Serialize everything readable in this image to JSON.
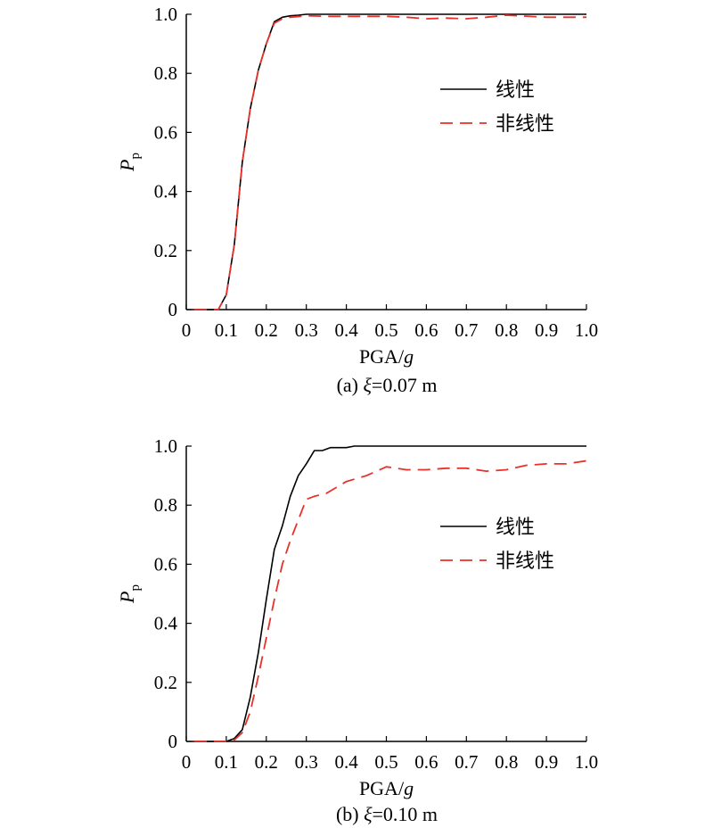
{
  "chart_data": [
    {
      "type": "line",
      "caption": {
        "prefix": "(a) ",
        "symbol": "ξ",
        "rest": "=0.07 m"
      },
      "xlabel": {
        "main": "PGA/",
        "italic": "g"
      },
      "ylabel": {
        "main": "P",
        "sub": "p"
      },
      "xlim": [
        0,
        1.0
      ],
      "ylim": [
        0,
        1.0
      ],
      "xticks": [
        "0",
        "0.1",
        "0.2",
        "0.3",
        "0.4",
        "0.5",
        "0.6",
        "0.7",
        "0.8",
        "0.9",
        "1.0"
      ],
      "yticks": [
        "0",
        "0.2",
        "0.4",
        "0.6",
        "0.8",
        "1.0"
      ],
      "legend_position": "right, upper-middle",
      "series": [
        {
          "name": "线性",
          "color": "#000000",
          "dash": "solid",
          "points": [
            [
              0.02,
              0
            ],
            [
              0.08,
              0
            ],
            [
              0.1,
              0.05
            ],
            [
              0.12,
              0.22
            ],
            [
              0.14,
              0.5
            ],
            [
              0.16,
              0.68
            ],
            [
              0.18,
              0.81
            ],
            [
              0.2,
              0.9
            ],
            [
              0.22,
              0.975
            ],
            [
              0.24,
              0.99
            ],
            [
              0.26,
              0.995
            ],
            [
              0.28,
              0.997
            ],
            [
              0.3,
              1.0
            ],
            [
              0.4,
              1.0
            ],
            [
              0.5,
              1.0
            ],
            [
              0.6,
              1.0
            ],
            [
              0.7,
              1.0
            ],
            [
              0.8,
              1.0
            ],
            [
              0.9,
              1.0
            ],
            [
              1.0,
              1.0
            ]
          ]
        },
        {
          "name": "非线性",
          "color": "#e8312a",
          "dash": "dashed",
          "points": [
            [
              0.02,
              0
            ],
            [
              0.08,
              0
            ],
            [
              0.1,
              0.05
            ],
            [
              0.12,
              0.22
            ],
            [
              0.14,
              0.5
            ],
            [
              0.16,
              0.68
            ],
            [
              0.18,
              0.81
            ],
            [
              0.2,
              0.9
            ],
            [
              0.22,
              0.97
            ],
            [
              0.24,
              0.985
            ],
            [
              0.26,
              0.99
            ],
            [
              0.3,
              0.995
            ],
            [
              0.35,
              0.993
            ],
            [
              0.4,
              0.993
            ],
            [
              0.5,
              0.993
            ],
            [
              0.55,
              0.99
            ],
            [
              0.6,
              0.985
            ],
            [
              0.65,
              0.987
            ],
            [
              0.7,
              0.985
            ],
            [
              0.75,
              0.99
            ],
            [
              0.8,
              0.997
            ],
            [
              0.9,
              0.99
            ],
            [
              1.0,
              0.99
            ]
          ]
        }
      ]
    },
    {
      "type": "line",
      "caption": {
        "prefix": "(b) ",
        "symbol": "ξ",
        "rest": "=0.10 m"
      },
      "xlabel": {
        "main": "PGA/",
        "italic": "g"
      },
      "ylabel": {
        "main": "P",
        "sub": "p"
      },
      "xlim": [
        0,
        1.0
      ],
      "ylim": [
        0,
        1.0
      ],
      "xticks": [
        "0",
        "0.1",
        "0.2",
        "0.3",
        "0.4",
        "0.5",
        "0.6",
        "0.7",
        "0.8",
        "0.9",
        "1.0"
      ],
      "yticks": [
        "0",
        "0.2",
        "0.4",
        "0.6",
        "0.8",
        "1.0"
      ],
      "legend_position": "right, upper-middle",
      "series": [
        {
          "name": "线性",
          "color": "#000000",
          "dash": "solid",
          "points": [
            [
              0.02,
              0
            ],
            [
              0.1,
              0
            ],
            [
              0.12,
              0.01
            ],
            [
              0.14,
              0.04
            ],
            [
              0.16,
              0.15
            ],
            [
              0.18,
              0.3
            ],
            [
              0.2,
              0.48
            ],
            [
              0.22,
              0.65
            ],
            [
              0.24,
              0.73
            ],
            [
              0.26,
              0.83
            ],
            [
              0.28,
              0.9
            ],
            [
              0.3,
              0.94
            ],
            [
              0.32,
              0.985
            ],
            [
              0.34,
              0.985
            ],
            [
              0.36,
              0.995
            ],
            [
              0.4,
              0.995
            ],
            [
              0.42,
              1.0
            ],
            [
              0.5,
              1.0
            ],
            [
              0.6,
              1.0
            ],
            [
              0.7,
              1.0
            ],
            [
              0.8,
              1.0
            ],
            [
              0.9,
              1.0
            ],
            [
              1.0,
              1.0
            ]
          ]
        },
        {
          "name": "非线性",
          "color": "#e8312a",
          "dash": "dashed",
          "points": [
            [
              0.02,
              0
            ],
            [
              0.1,
              0
            ],
            [
              0.12,
              0.005
            ],
            [
              0.14,
              0.03
            ],
            [
              0.16,
              0.1
            ],
            [
              0.18,
              0.22
            ],
            [
              0.2,
              0.35
            ],
            [
              0.22,
              0.48
            ],
            [
              0.24,
              0.6
            ],
            [
              0.26,
              0.68
            ],
            [
              0.28,
              0.75
            ],
            [
              0.3,
              0.82
            ],
            [
              0.32,
              0.83
            ],
            [
              0.35,
              0.84
            ],
            [
              0.4,
              0.88
            ],
            [
              0.45,
              0.9
            ],
            [
              0.5,
              0.93
            ],
            [
              0.55,
              0.92
            ],
            [
              0.6,
              0.92
            ],
            [
              0.65,
              0.925
            ],
            [
              0.7,
              0.925
            ],
            [
              0.75,
              0.915
            ],
            [
              0.8,
              0.92
            ],
            [
              0.85,
              0.935
            ],
            [
              0.9,
              0.94
            ],
            [
              0.95,
              0.94
            ],
            [
              1.0,
              0.95
            ]
          ]
        }
      ]
    }
  ]
}
